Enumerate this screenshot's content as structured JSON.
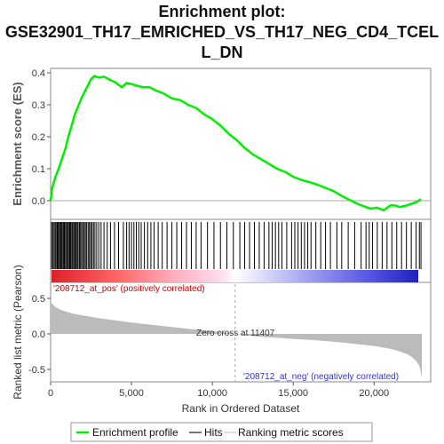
{
  "title_lines": [
    "Enrichment plot:",
    "GSE32901_TH17_EMRICHED_VS_TH17_NEG_CD4_TCEL",
    "L_DN"
  ],
  "colors": {
    "profile": "#00ee00",
    "hits": "#000000",
    "metric": "#bbbbbb",
    "pos_label": "#cc0000",
    "neg_label": "#3333cc",
    "zero_line": "#aaaaaa"
  },
  "chart_data": [
    {
      "type": "line",
      "ylabel": "Enrichment score (ES)",
      "ylim": [
        -0.04,
        0.41
      ],
      "yticks": [
        0.0,
        0.1,
        0.2,
        0.3,
        0.4
      ],
      "ytick_labels": [
        "0.0",
        "0.1",
        "0.2",
        "0.3",
        "0.4"
      ],
      "xlim": [
        0,
        23500
      ],
      "grid": false,
      "series": [
        {
          "name": "Enrichment profile",
          "x": [
            0,
            100,
            300,
            500,
            700,
            900,
            1100,
            1300,
            1500,
            1700,
            1900,
            2100,
            2300,
            2500,
            2700,
            3000,
            3300,
            3600,
            4000,
            4400,
            4700,
            5000,
            5300,
            5700,
            6100,
            6500,
            7000,
            7500,
            8000,
            8500,
            9000,
            9500,
            10000,
            10500,
            11000,
            11500,
            12000,
            12500,
            13000,
            13500,
            14000,
            14500,
            15000,
            15500,
            16000,
            16500,
            17000,
            17500,
            18000,
            18500,
            19000,
            19500,
            19800,
            20200,
            20600,
            21000,
            21300,
            21600,
            22000,
            22300,
            22600,
            22900
          ],
          "y": [
            0.0,
            0.04,
            0.075,
            0.1,
            0.13,
            0.16,
            0.2,
            0.235,
            0.27,
            0.295,
            0.32,
            0.34,
            0.36,
            0.38,
            0.39,
            0.385,
            0.388,
            0.38,
            0.37,
            0.355,
            0.368,
            0.365,
            0.36,
            0.355,
            0.355,
            0.345,
            0.335,
            0.32,
            0.315,
            0.3,
            0.29,
            0.27,
            0.255,
            0.235,
            0.21,
            0.19,
            0.165,
            0.145,
            0.13,
            0.115,
            0.1,
            0.09,
            0.075,
            0.065,
            0.058,
            0.05,
            0.04,
            0.03,
            0.015,
            0.002,
            -0.01,
            -0.02,
            -0.025,
            -0.022,
            -0.03,
            -0.015,
            -0.015,
            -0.02,
            -0.015,
            -0.01,
            -0.005,
            0.005
          ]
        }
      ]
    },
    {
      "type": "hits",
      "hit_ranks": [
        60,
        130,
        210,
        280,
        340,
        410,
        470,
        540,
        600,
        660,
        720,
        790,
        850,
        920,
        990,
        1050,
        1110,
        1180,
        1240,
        1310,
        1370,
        1440,
        1500,
        1570,
        1640,
        1700,
        1780,
        1850,
        1920,
        2000,
        2080,
        2150,
        2230,
        2320,
        2400,
        2480,
        2560,
        2650,
        2740,
        2850,
        2980,
        3120,
        3300,
        3500,
        3700,
        3950,
        4200,
        4500,
        4700,
        4850,
        5000,
        5150,
        5300,
        5450,
        5600,
        5800,
        6000,
        6200,
        6400,
        6650,
        6900,
        7200,
        7500,
        7800,
        8100,
        8400,
        8700,
        9000,
        9300,
        9700,
        10100,
        10500,
        10900,
        11300,
        11700,
        12000,
        12300,
        12600,
        12900,
        13200,
        13500,
        13700,
        13900,
        14100,
        14300,
        14600,
        14900,
        15100,
        15300,
        15500,
        15700,
        15900,
        16100,
        16400,
        16700,
        17000,
        17300,
        17700,
        18000,
        18400,
        18800,
        19200,
        19500,
        19700,
        19900,
        20200,
        20500,
        20800,
        21100,
        21400,
        21700,
        22000,
        22300,
        22600,
        22800,
        22900
      ]
    },
    {
      "type": "area",
      "ylabel": "Ranked list metric (Pearson)",
      "xlabel": "Rank in Ordered Dataset",
      "ylim": [
        -0.66,
        0.6
      ],
      "yticks": [
        0.5,
        0.0,
        -0.5
      ],
      "ytick_labels": [
        "0.5",
        "0.0",
        "-0.5"
      ],
      "xticks": [
        0,
        5000,
        10000,
        15000,
        20000
      ],
      "xtick_labels": [
        "0",
        "5,000",
        "10,000",
        "15,000",
        "20,000"
      ],
      "xlim": [
        0,
        23500
      ],
      "series": [
        {
          "name": "Ranking metric scores",
          "x": [
            0,
            100,
            300,
            600,
            1000,
            1500,
            2000,
            3000,
            4000,
            5000,
            6000,
            7000,
            8000,
            9000,
            10000,
            11000,
            11407,
            12000,
            13000,
            14000,
            15000,
            16000,
            17000,
            18000,
            19000,
            20000,
            21000,
            21500,
            22000,
            22300,
            22600,
            22800,
            22900,
            22950
          ],
          "y": [
            0.46,
            0.42,
            0.38,
            0.34,
            0.31,
            0.28,
            0.26,
            0.22,
            0.19,
            0.16,
            0.135,
            0.11,
            0.085,
            0.06,
            0.04,
            0.015,
            0.0,
            -0.015,
            -0.04,
            -0.055,
            -0.07,
            -0.085,
            -0.1,
            -0.12,
            -0.145,
            -0.17,
            -0.21,
            -0.24,
            -0.28,
            -0.32,
            -0.38,
            -0.45,
            -0.55,
            -0.62
          ]
        }
      ],
      "zero_cross": 11407,
      "annotations": {
        "pos_label": "'208712_at_pos' (positively correlated)",
        "neg_label": "'208712_at_neg' (negatively correlated)",
        "zero_cross": "Zero cross at 11407"
      }
    }
  ],
  "legend": {
    "placement": "bottom",
    "items": [
      {
        "label": "Enrichment profile",
        "color": "#00ee00"
      },
      {
        "label": "Hits",
        "color": "#777777"
      },
      {
        "label": "Ranking metric scores",
        "color": "#dddddd"
      }
    ]
  }
}
